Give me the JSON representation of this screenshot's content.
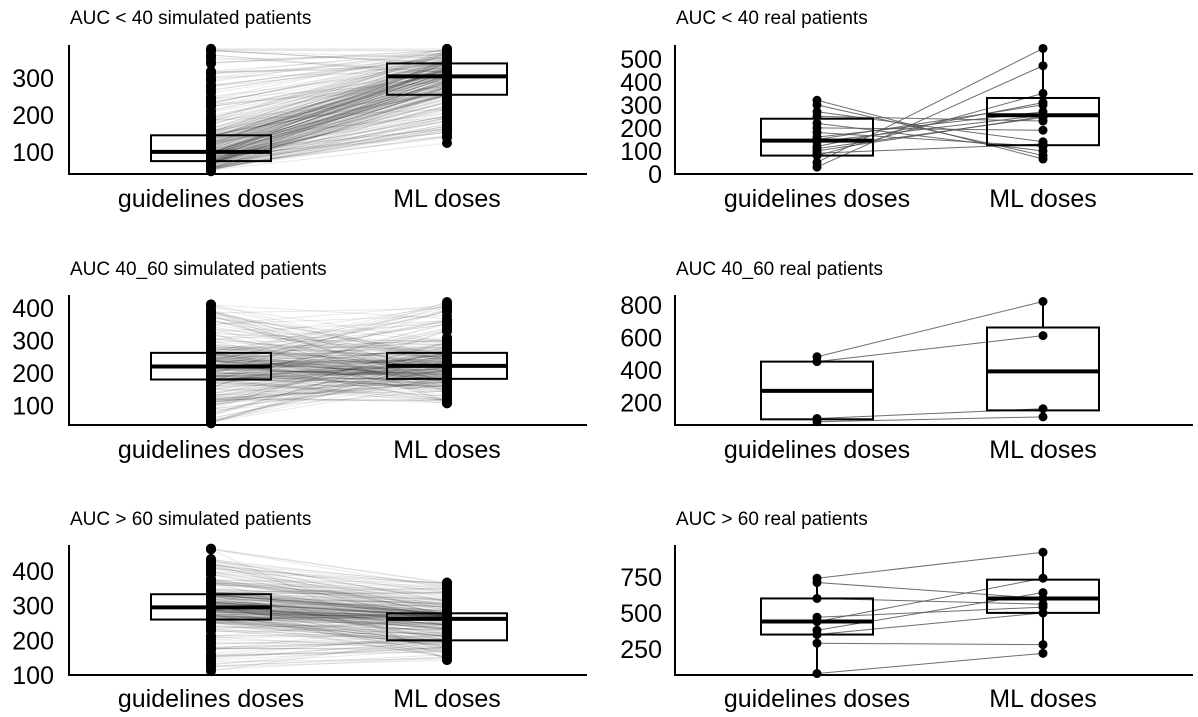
{
  "chart_data": [
    {
      "type": "box-paired",
      "title": "AUC < 40 simulated patients",
      "categories": [
        "guidelines doses",
        "ML doses"
      ],
      "yticks": [
        100,
        200,
        300
      ],
      "ylim": [
        40,
        390
      ],
      "boxes": [
        {
          "category": "guidelines doses",
          "q1": 75,
          "median": 100,
          "q3": 145,
          "whisker_low": 45,
          "whisker_high": 380
        },
        {
          "category": "ML doses",
          "q1": 255,
          "median": 305,
          "q3": 340,
          "whisker_low": 115,
          "whisker_high": 380
        }
      ],
      "simulated": true,
      "n_lines": 260,
      "left_range": [
        45,
        380
      ],
      "right_range": [
        115,
        380
      ],
      "line_correlation": "increase"
    },
    {
      "type": "box-paired",
      "title": "AUC < 40 real patients",
      "categories": [
        "guidelines doses",
        "ML doses"
      ],
      "yticks": [
        0,
        100,
        200,
        300,
        400,
        500
      ],
      "ylim": [
        0,
        560
      ],
      "boxes": [
        {
          "category": "guidelines doses",
          "q1": 80,
          "median": 145,
          "q3": 240,
          "whisker_low": 30,
          "whisker_high": 320
        },
        {
          "category": "ML doses",
          "q1": 125,
          "median": 255,
          "q3": 330,
          "whisker_low": 65,
          "whisker_high": 545
        }
      ],
      "pairs": [
        [
          30,
          470
        ],
        [
          50,
          545
        ],
        [
          80,
          350
        ],
        [
          100,
          250
        ],
        [
          120,
          310
        ],
        [
          150,
          300
        ],
        [
          160,
          270
        ],
        [
          180,
          120
        ],
        [
          200,
          190
        ],
        [
          220,
          100
        ],
        [
          250,
          230
        ],
        [
          270,
          140
        ],
        [
          300,
          80
        ],
        [
          320,
          65
        ],
        [
          140,
          255
        ],
        [
          110,
          245
        ],
        [
          90,
          130
        ]
      ]
    },
    {
      "type": "box-paired",
      "title": "AUC 40_60 simulated patients",
      "categories": [
        "guidelines doses",
        "ML doses"
      ],
      "yticks": [
        100,
        200,
        300,
        400
      ],
      "ylim": [
        40,
        440
      ],
      "boxes": [
        {
          "category": "guidelines doses",
          "q1": 180,
          "median": 220,
          "q3": 262,
          "whisker_low": 45,
          "whisker_high": 420
        },
        {
          "category": "ML doses",
          "q1": 182,
          "median": 222,
          "q3": 262,
          "whisker_low": 105,
          "whisker_high": 420
        }
      ],
      "simulated": true,
      "n_lines": 260,
      "left_range": [
        45,
        420
      ],
      "right_range": [
        105,
        420
      ],
      "line_correlation": "random"
    },
    {
      "type": "box-paired",
      "title": "AUC 40_60 real patients",
      "categories": [
        "guidelines doses",
        "ML doses"
      ],
      "yticks": [
        200,
        400,
        600,
        800
      ],
      "ylim": [
        60,
        860
      ],
      "boxes": [
        {
          "category": "guidelines doses",
          "q1": 95,
          "median": 270,
          "q3": 450,
          "whisker_low": 70,
          "whisker_high": 480
        },
        {
          "category": "ML doses",
          "q1": 150,
          "median": 390,
          "q3": 660,
          "whisker_low": 110,
          "whisker_high": 820
        }
      ],
      "pairs": [
        [
          480,
          820
        ],
        [
          450,
          610
        ],
        [
          100,
          160
        ],
        [
          80,
          110
        ]
      ]
    },
    {
      "type": "box-paired",
      "title": "AUC > 60 simulated patients",
      "categories": [
        "guidelines doses",
        "ML doses"
      ],
      "yticks": [
        100,
        200,
        300,
        400
      ],
      "ylim": [
        100,
        475
      ],
      "boxes": [
        {
          "category": "guidelines doses",
          "q1": 260,
          "median": 295,
          "q3": 333,
          "whisker_low": 110,
          "whisker_high": 470
        },
        {
          "category": "ML doses",
          "q1": 200,
          "median": 262,
          "q3": 278,
          "whisker_low": 130,
          "whisker_high": 370
        }
      ],
      "simulated": true,
      "n_lines": 260,
      "left_range": [
        110,
        470
      ],
      "right_range": [
        130,
        370
      ],
      "line_correlation": "decrease"
    },
    {
      "type": "box-paired",
      "title": "AUC > 60 real patients",
      "categories": [
        "guidelines doses",
        "ML doses"
      ],
      "yticks": [
        250,
        500,
        750
      ],
      "ylim": [
        70,
        970
      ],
      "boxes": [
        {
          "category": "guidelines doses",
          "q1": 350,
          "median": 440,
          "q3": 600,
          "whisker_low": 80,
          "whisker_high": 740
        },
        {
          "category": "ML doses",
          "q1": 500,
          "median": 600,
          "q3": 730,
          "whisker_low": 220,
          "whisker_high": 920
        }
      ],
      "pairs": [
        [
          740,
          920
        ],
        [
          710,
          600
        ],
        [
          600,
          560
        ],
        [
          470,
          540
        ],
        [
          440,
          740
        ],
        [
          380,
          640
        ],
        [
          350,
          500
        ],
        [
          290,
          280
        ],
        [
          80,
          220
        ]
      ]
    }
  ]
}
